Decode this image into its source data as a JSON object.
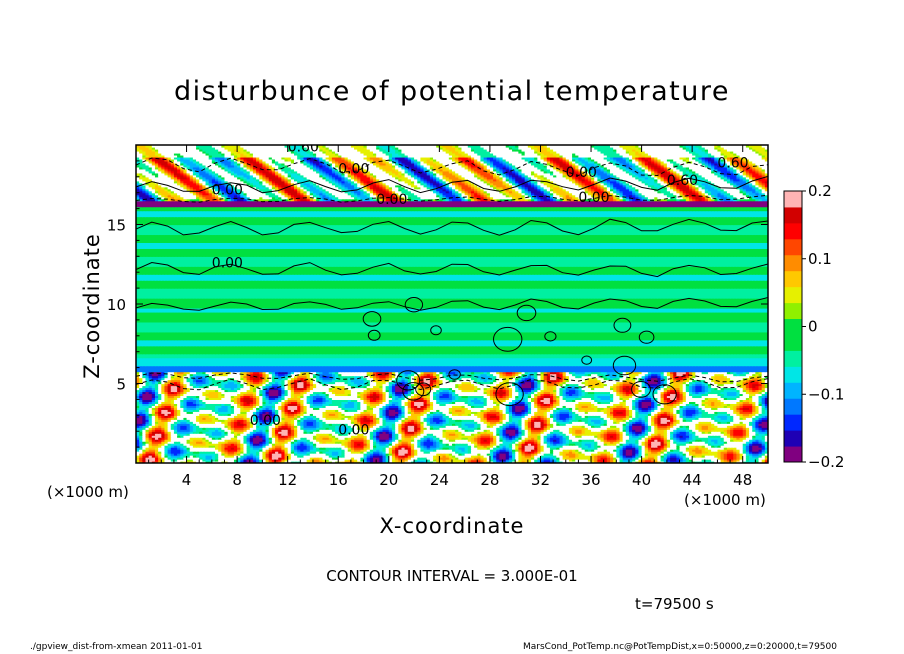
{
  "chart_data": {
    "type": "heatmap",
    "title": "disturbunce of potential temperature",
    "xlabel": "X-coordinate",
    "ylabel": "Z-coordinate",
    "x_unit_left": "(×1000 m)",
    "x_unit_right": "(×1000 m)",
    "xlim": [
      0,
      50
    ],
    "ylim": [
      0,
      20
    ],
    "x_ticks": [
      4,
      8,
      12,
      16,
      20,
      24,
      28,
      32,
      36,
      40,
      44,
      48
    ],
    "x_tick_labels": [
      "4",
      "8",
      "12",
      "16",
      "20",
      "24",
      "28",
      "32",
      "36",
      "40",
      "44",
      "48"
    ],
    "y_ticks": [
      5,
      10,
      15
    ],
    "y_tick_labels": [
      "5",
      "10",
      "15"
    ],
    "colorbar": {
      "range": [
        -0.2,
        0.2
      ],
      "ticks": [
        0.2,
        0.1,
        0,
        -0.1,
        -0.2
      ],
      "tick_labels": [
        "0.2",
        "0.1",
        "0",
        "−0.1",
        "−0.2"
      ],
      "colors": [
        "#800080",
        "#1e00b4",
        "#0028ff",
        "#0078ff",
        "#00b4ff",
        "#00e6e6",
        "#00f0a0",
        "#00e040",
        "#00e040",
        "#90f000",
        "#e6f000",
        "#ffc800",
        "#ff8c00",
        "#ff4600",
        "#ff0000",
        "#d20000",
        "#ffb4b4"
      ]
    },
    "bands": [
      {
        "z_from": 0,
        "z_to": 6,
        "field": "turbulent, values spanning -0.2 to 0.2"
      },
      {
        "z_from": 6,
        "z_to": 16,
        "field": "near 0, with alternating cyan/green horizontal bands"
      },
      {
        "z_from": 16,
        "z_to": 20,
        "field": "turbulent, white with red/blue patches"
      }
    ],
    "contour_labels": [
      "0.00",
      "0.60"
    ],
    "contour_interval": "CONTOUR INTERVAL = 3.000E-01",
    "time_label": "t=79500 s"
  },
  "footer": {
    "left": "./gpview_dist-from-xmean   2011-01-01",
    "right": "MarsCond_PotTemp.nc@PotTempDist,x=0:50000,z=0:20000,t=79500"
  }
}
